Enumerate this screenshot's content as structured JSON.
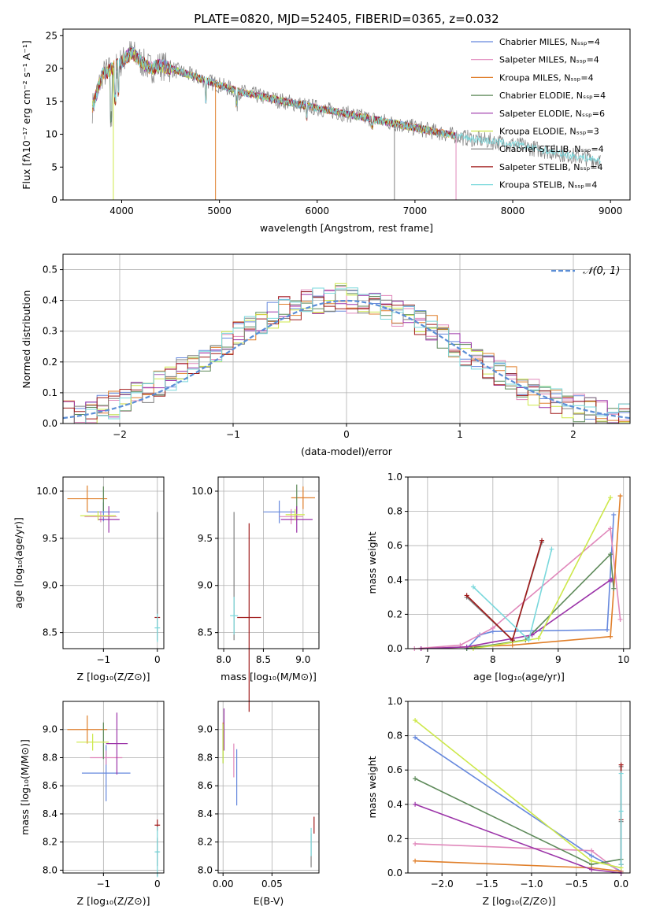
{
  "colors": {
    "chabrier_miles": "#6688dd",
    "salpeter_miles": "#e088bb",
    "kroupa_miles": "#e07f2a",
    "chabrier_elodie": "#5e8a5a",
    "salpeter_elodie": "#9b33a8",
    "kroupa_elodie": "#cde84a",
    "chabrier_stelib": "#808080",
    "salpeter_stelib": "#a01a1a",
    "kroupa_stelib": "#7ad8dc"
  },
  "series_keys": [
    "chabrier_miles",
    "salpeter_miles",
    "kroupa_miles",
    "chabrier_elodie",
    "salpeter_elodie",
    "kroupa_elodie",
    "chabrier_stelib",
    "salpeter_stelib",
    "kroupa_stelib"
  ],
  "chart_data": [
    {
      "id": "spectrum",
      "type": "line",
      "title": "PLATE=0820, MJD=52405, FIBERID=0365, z=0.032",
      "xlabel": "wavelength [Angstrom, rest frame]",
      "ylabel": "Flux [fλ10⁻¹⁷ erg cm⁻² s⁻¹ A⁻¹]",
      "xlim": [
        3400,
        9200
      ],
      "ylim": [
        0,
        26
      ],
      "xticks": [
        "4000",
        "5000",
        "6000",
        "7000",
        "8000",
        "9000"
      ],
      "yticks": [
        "0",
        "5",
        "10",
        "15",
        "20",
        "25"
      ],
      "legend_position": "top-right",
      "legend": [
        "Chabrier MILES, Nₛₛₚ=4",
        "Salpeter MILES, Nₛₛₚ=4",
        "Kroupa MILES, Nₛₛₚ=4",
        "Chabrier ELODIE, Nₛₛₚ=4",
        "Salpeter ELODIE, Nₛₛₚ=6",
        "Kroupa ELODIE, Nₛₛₚ=3",
        "Chabrier STELIB, Nₛₛₚ=4",
        "Salpeter STELIB, Nₛₛₚ=4",
        "Kroupa STELIB, Nₛₛₚ=4"
      ],
      "continuum": {
        "x": [
          3700,
          3800,
          3900,
          4000,
          4100,
          4200,
          4300,
          4400,
          4500,
          4600,
          4800,
          5000,
          5200,
          5500,
          6000,
          6500,
          7000,
          7500,
          8000,
          8500,
          8900
        ],
        "y": [
          14,
          19,
          20,
          21,
          22.5,
          21,
          20,
          20.5,
          20,
          19.5,
          18.5,
          17.5,
          16.5,
          15.5,
          14,
          12.5,
          11,
          9.5,
          8.5,
          7,
          6
        ]
      }
    },
    {
      "id": "residuals",
      "type": "step",
      "xlabel": "(data-model)/error",
      "ylabel": "Normed distribution",
      "xlim": [
        -2.5,
        2.5
      ],
      "ylim": [
        0,
        0.55
      ],
      "xticks": [
        "−2",
        "−1",
        "0",
        "1",
        "2"
      ],
      "yticks": [
        "0.0",
        "0.1",
        "0.2",
        "0.3",
        "0.4",
        "0.5"
      ],
      "legend_position": "top-right",
      "legend": [
        "𝒩(0, 1)"
      ],
      "bin_edges_start": -2.5,
      "bin_width": 0.1,
      "base_hist": [
        0.03,
        0.03,
        0.04,
        0.05,
        0.06,
        0.07,
        0.09,
        0.1,
        0.13,
        0.15,
        0.17,
        0.19,
        0.21,
        0.24,
        0.26,
        0.29,
        0.31,
        0.33,
        0.35,
        0.37,
        0.38,
        0.39,
        0.4,
        0.4,
        0.41,
        0.4,
        0.4,
        0.39,
        0.38,
        0.36,
        0.35,
        0.33,
        0.31,
        0.28,
        0.26,
        0.23,
        0.21,
        0.19,
        0.16,
        0.14,
        0.12,
        0.1,
        0.09,
        0.07,
        0.06,
        0.05,
        0.04,
        0.03,
        0.03,
        0.02
      ],
      "gaussian": {
        "mean": 0,
        "sigma": 1,
        "style": "dashed",
        "color": "#5b8ed6"
      }
    },
    {
      "id": "age_vs_Z",
      "type": "errorbar",
      "xlabel": "Z [log₁₀(Z/Z⊙)]",
      "ylabel": "age  [log₁₀(age/yr)]",
      "xlim": [
        -1.75,
        0.12
      ],
      "ylim": [
        8.33,
        10.15
      ],
      "xticks": [
        "−1",
        "0"
      ],
      "xtick_values": [
        -1,
        0
      ],
      "yticks": [
        "8.5",
        "9.0",
        "9.5",
        "10.0"
      ],
      "ytick_values": [
        8.5,
        9.0,
        9.5,
        10.0
      ],
      "points": [
        {
          "key": "chabrier_miles",
          "x": -1.0,
          "y": 9.78,
          "xerr": 0.3,
          "yerr": 0.1
        },
        {
          "key": "salpeter_miles",
          "x": -1.05,
          "y": 9.73,
          "xerr": 0.3,
          "yerr": 0.06
        },
        {
          "key": "kroupa_miles",
          "x": -1.3,
          "y": 9.92,
          "xerr": 0.37,
          "yerr": 0.14
        },
        {
          "key": "chabrier_elodie",
          "x": -1.0,
          "y": 9.92,
          "xerr": 0.0,
          "yerr": 0.13
        },
        {
          "key": "salpeter_elodie",
          "x": -0.9,
          "y": 9.7,
          "xerr": 0.2,
          "yerr": 0.14
        },
        {
          "key": "kroupa_elodie",
          "x": -1.1,
          "y": 9.74,
          "xerr": 0.33,
          "yerr": 0.05
        },
        {
          "key": "chabrier_stelib",
          "x": 0.0,
          "y": 9.1,
          "xerr": 0.0,
          "yerr": 0.68
        },
        {
          "key": "salpeter_stelib",
          "x": 0.0,
          "y": 8.66,
          "xerr": 0.05,
          "yerr": 0.0
        },
        {
          "key": "kroupa_stelib",
          "x": 0.0,
          "y": 8.55,
          "xerr": 0.05,
          "yerr": 0.15
        }
      ]
    },
    {
      "id": "age_vs_mass",
      "type": "errorbar",
      "xlabel": "mass [log₁₀(M/M⊙)]",
      "ylabel": "",
      "xlim": [
        7.93,
        9.2
      ],
      "ylim": [
        8.33,
        10.15
      ],
      "xticks": [
        "8.0",
        "8.5",
        "9.0"
      ],
      "xtick_values": [
        8.0,
        8.5,
        9.0
      ],
      "yticks": [
        "8.5",
        "9.0",
        "9.5",
        "10.0"
      ],
      "ytick_values": [
        8.5,
        9.0,
        9.5,
        10.0
      ],
      "points": [
        {
          "key": "chabrier_miles",
          "x": 8.7,
          "y": 9.78,
          "xerr": 0.2,
          "yerr": 0.12
        },
        {
          "key": "salpeter_miles",
          "x": 8.85,
          "y": 9.73,
          "xerr": 0.15,
          "yerr": 0.08
        },
        {
          "key": "kroupa_miles",
          "x": 9.0,
          "y": 9.93,
          "xerr": 0.15,
          "yerr": 0.12
        },
        {
          "key": "chabrier_elodie",
          "x": 8.92,
          "y": 9.92,
          "xerr": 0.0,
          "yerr": 0.15
        },
        {
          "key": "salpeter_elodie",
          "x": 8.92,
          "y": 9.7,
          "xerr": 0.2,
          "yerr": 0.14
        },
        {
          "key": "kroupa_elodie",
          "x": 8.9,
          "y": 9.75,
          "xerr": 0.12,
          "yerr": 0.06
        },
        {
          "key": "chabrier_stelib",
          "x": 8.13,
          "y": 9.1,
          "xerr": 0.0,
          "yerr": 0.68
        },
        {
          "key": "salpeter_stelib",
          "x": 8.32,
          "y": 8.66,
          "xerr": 0.15,
          "yerr": 1.0
        },
        {
          "key": "kroupa_stelib",
          "x": 8.13,
          "y": 8.68,
          "xerr": 0.05,
          "yerr": 0.2
        }
      ]
    },
    {
      "id": "weight_vs_age",
      "type": "line",
      "xlabel": "age  [log₁₀(age/yr)]",
      "ylabel": "mass weight",
      "xlim": [
        6.7,
        10.1
      ],
      "ylim": [
        0,
        1.0
      ],
      "xticks": [
        "7",
        "8",
        "9",
        "10"
      ],
      "xtick_values": [
        7,
        8,
        9,
        10
      ],
      "yticks": [
        "0.0",
        "0.2",
        "0.4",
        "0.6",
        "0.8",
        "1.0"
      ],
      "ytick_values": [
        0,
        0.2,
        0.4,
        0.6,
        0.8,
        1.0
      ],
      "series": [
        {
          "key": "chabrier_miles",
          "x": [
            7.6,
            7.8,
            8.0,
            9.75,
            9.85
          ],
          "y": [
            0.0,
            0.08,
            0.1,
            0.11,
            0.78
          ]
        },
        {
          "key": "salpeter_miles",
          "x": [
            6.8,
            7.5,
            8.0,
            9.8,
            9.95
          ],
          "y": [
            0.0,
            0.02,
            0.12,
            0.7,
            0.17
          ]
        },
        {
          "key": "kroupa_miles",
          "x": [
            6.9,
            8.3,
            9.8,
            9.95
          ],
          "y": [
            0.0,
            0.02,
            0.07,
            0.89
          ]
        },
        {
          "key": "chabrier_elodie",
          "x": [
            7.6,
            8.5,
            9.8,
            9.85
          ],
          "y": [
            0.0,
            0.05,
            0.55,
            0.35
          ]
        },
        {
          "key": "salpeter_elodie",
          "x": [
            6.9,
            7.6,
            8.6,
            9.8,
            9.82
          ],
          "y": [
            0.0,
            0.01,
            0.08,
            0.4,
            0.4
          ]
        },
        {
          "key": "kroupa_elodie",
          "x": [
            7.7,
            8.7,
            9.8
          ],
          "y": [
            0.0,
            0.06,
            0.88
          ]
        },
        {
          "key": "chabrier_stelib",
          "x": [
            7.6,
            8.3,
            8.75
          ],
          "y": [
            0.3,
            0.05,
            0.62
          ]
        },
        {
          "key": "salpeter_stelib",
          "x": [
            7.6,
            8.3,
            8.75
          ],
          "y": [
            0.31,
            0.05,
            0.63
          ]
        },
        {
          "key": "kroupa_stelib",
          "x": [
            7.7,
            8.55,
            8.9
          ],
          "y": [
            0.36,
            0.05,
            0.58
          ]
        }
      ]
    },
    {
      "id": "mass_vs_Z",
      "type": "errorbar",
      "xlabel": "Z [log₁₀(Z/Z⊙)]",
      "ylabel": "mass [log₁₀(M/M⊙)]",
      "xlim": [
        -1.75,
        0.12
      ],
      "ylim": [
        7.98,
        9.2
      ],
      "xticks": [
        "−1",
        "0"
      ],
      "xtick_values": [
        -1,
        0
      ],
      "yticks": [
        "8.0",
        "8.2",
        "8.4",
        "8.6",
        "8.8",
        "9.0"
      ],
      "ytick_values": [
        8.0,
        8.2,
        8.4,
        8.6,
        8.8,
        9.0
      ],
      "points": [
        {
          "key": "chabrier_miles",
          "x": -0.95,
          "y": 8.69,
          "xerr": 0.45,
          "yerr": 0.2
        },
        {
          "key": "salpeter_miles",
          "x": -0.95,
          "y": 8.8,
          "xerr": 0.3,
          "yerr": 0.05
        },
        {
          "key": "kroupa_miles",
          "x": -1.3,
          "y": 9.0,
          "xerr": 0.37,
          "yerr": 0.1
        },
        {
          "key": "chabrier_elodie",
          "x": -1.0,
          "y": 8.92,
          "xerr": 0.0,
          "yerr": 0.13
        },
        {
          "key": "salpeter_elodie",
          "x": -0.75,
          "y": 8.9,
          "xerr": 0.2,
          "yerr": 0.22
        },
        {
          "key": "kroupa_elodie",
          "x": -1.2,
          "y": 8.91,
          "xerr": 0.3,
          "yerr": 0.06
        },
        {
          "key": "chabrier_stelib",
          "x": 0.0,
          "y": 8.13,
          "xerr": 0.03,
          "yerr": 0.1
        },
        {
          "key": "salpeter_stelib",
          "x": 0.0,
          "y": 8.32,
          "xerr": 0.05,
          "yerr": 0.04
        },
        {
          "key": "kroupa_stelib",
          "x": 0.0,
          "y": 8.13,
          "xerr": 0.05,
          "yerr": 0.18
        }
      ]
    },
    {
      "id": "mass_vs_EBV",
      "type": "errorbar",
      "xlabel": "E(B-V)",
      "ylabel": "",
      "xlim": [
        -0.005,
        0.098
      ],
      "ylim": [
        7.98,
        9.2
      ],
      "xticks": [
        "0.00",
        "0.05"
      ],
      "xtick_values": [
        0.0,
        0.05
      ],
      "yticks": [
        "8.0",
        "8.2",
        "8.4",
        "8.6",
        "8.8",
        "9.0"
      ],
      "ytick_values": [
        8.0,
        8.2,
        8.4,
        8.6,
        8.8,
        9.0
      ],
      "points": [
        {
          "key": "chabrier_miles",
          "x": 0.014,
          "y": 8.66,
          "xerr": 0.0,
          "yerr": 0.2
        },
        {
          "key": "salpeter_miles",
          "x": 0.011,
          "y": 8.78,
          "xerr": 0.0,
          "yerr": 0.12
        },
        {
          "key": "kroupa_miles",
          "x": 0.0,
          "y": 8.95,
          "xerr": 0.0,
          "yerr": 0.1
        },
        {
          "key": "chabrier_elodie",
          "x": 0.0,
          "y": 8.9,
          "xerr": 0.0,
          "yerr": 0.14
        },
        {
          "key": "salpeter_elodie",
          "x": 0.001,
          "y": 9.0,
          "xerr": 0.0,
          "yerr": 0.15
        },
        {
          "key": "kroupa_elodie",
          "x": 0.0,
          "y": 8.9,
          "xerr": 0.0,
          "yerr": 0.14
        },
        {
          "key": "chabrier_stelib",
          "x": 0.09,
          "y": 8.14,
          "xerr": 0.0,
          "yerr": 0.12
        },
        {
          "key": "salpeter_stelib",
          "x": 0.093,
          "y": 8.32,
          "xerr": 0.0,
          "yerr": 0.06
        },
        {
          "key": "kroupa_stelib",
          "x": 0.09,
          "y": 8.2,
          "xerr": 0.0,
          "yerr": 0.1
        }
      ]
    },
    {
      "id": "weight_vs_Z",
      "type": "line",
      "xlabel": "Z [log₁₀(Z/Z⊙)]",
      "ylabel": "mass weight",
      "xlim": [
        -2.38,
        0.1
      ],
      "ylim": [
        0,
        1.0
      ],
      "xticks": [
        "−2.0",
        "−1.5",
        "−1.0",
        "−0.5",
        "0.0"
      ],
      "xtick_values": [
        -2.0,
        -1.5,
        -1.0,
        -0.5,
        0.0
      ],
      "yticks": [
        "0.0",
        "0.2",
        "0.4",
        "0.6",
        "0.8",
        "1.0"
      ],
      "ytick_values": [
        0,
        0.2,
        0.4,
        0.6,
        0.8,
        1.0
      ],
      "series": [
        {
          "key": "chabrier_miles",
          "x": [
            -2.3,
            -0.33,
            0.0
          ],
          "y": [
            0.79,
            0.1,
            0.01
          ]
        },
        {
          "key": "salpeter_miles",
          "x": [
            -2.3,
            -0.33,
            0.0
          ],
          "y": [
            0.17,
            0.13,
            0.0
          ]
        },
        {
          "key": "kroupa_miles",
          "x": [
            -2.3,
            -0.33,
            0.0
          ],
          "y": [
            0.07,
            0.03,
            0.01
          ]
        },
        {
          "key": "chabrier_elodie",
          "x": [
            -2.3,
            -0.33,
            0.0
          ],
          "y": [
            0.55,
            0.05,
            0.08
          ]
        },
        {
          "key": "salpeter_elodie",
          "x": [
            -2.3,
            -0.33,
            0.0
          ],
          "y": [
            0.4,
            0.02,
            0.0
          ]
        },
        {
          "key": "kroupa_elodie",
          "x": [
            -2.3,
            -0.33,
            0.0
          ],
          "y": [
            0.89,
            0.07,
            0.03
          ]
        },
        {
          "key": "chabrier_stelib",
          "x": [
            0.0,
            0.0,
            0.0
          ],
          "y": [
            0.05,
            0.3,
            0.62
          ]
        },
        {
          "key": "salpeter_stelib",
          "x": [
            0.0,
            0.0,
            0.0
          ],
          "y": [
            0.05,
            0.31,
            0.63
          ]
        },
        {
          "key": "kroupa_stelib",
          "x": [
            0.0,
            0.0,
            0.0
          ],
          "y": [
            0.05,
            0.36,
            0.58
          ]
        }
      ]
    }
  ]
}
